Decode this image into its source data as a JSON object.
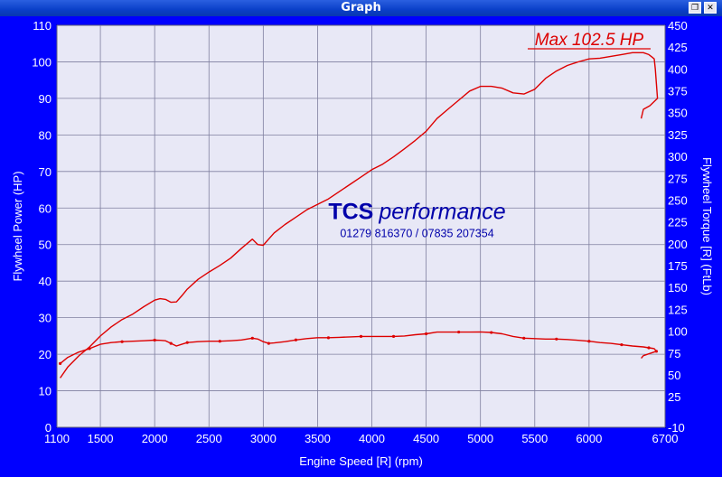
{
  "window": {
    "title": "Graph"
  },
  "titlebar_buttons": [
    {
      "icon": "restore-icon",
      "glyph": "❐"
    },
    {
      "icon": "close-icon",
      "glyph": "✕"
    }
  ],
  "colors": {
    "frame": "#0000ff",
    "plot_bg": "#e8e8f6",
    "grid": "#7f7f9f",
    "curve": "#dd0000",
    "brand": "#0000aa"
  },
  "watermark": {
    "brand_bold": "TCS",
    "brand_italic": "performance",
    "phone": "01279 816370 / 07835 207354"
  },
  "annotation": {
    "max_label": "Max 102.5 HP"
  },
  "chart_data": {
    "type": "line",
    "xlabel": "Engine Speed [R] (rpm)",
    "ylabel": "Flywheel Power (HP)",
    "ylabel_right": "Flywheel Torque [R] (FtLb)",
    "xlim": [
      1100,
      6700
    ],
    "ylim": [
      0,
      110
    ],
    "ylim_right": [
      -10,
      450
    ],
    "xticks": [
      1100,
      1500,
      2000,
      2500,
      3000,
      3500,
      4000,
      4500,
      5000,
      5500,
      6000,
      6700
    ],
    "yticks": [
      0,
      10,
      20,
      30,
      40,
      50,
      60,
      70,
      80,
      90,
      100,
      110
    ],
    "yticks_right": [
      -10,
      25,
      50,
      75,
      100,
      125,
      150,
      175,
      200,
      225,
      250,
      275,
      300,
      325,
      350,
      375,
      400,
      425,
      450
    ],
    "grid": true,
    "series": [
      {
        "axis": "left",
        "x": [
          1130,
          1200,
          1300,
          1400,
          1500,
          1600,
          1700,
          1800,
          1900,
          2000,
          2050,
          2100,
          2150,
          2200,
          2250,
          2300,
          2400,
          2500,
          2600,
          2700,
          2800,
          2900,
          2950,
          3000,
          3050,
          3100,
          3200,
          3300,
          3400,
          3500,
          3600,
          3700,
          3800,
          3900,
          4000,
          4100,
          4200,
          4300,
          4400,
          4500,
          4600,
          4700,
          4800,
          4900,
          5000,
          5100,
          5200,
          5300,
          5400,
          5500,
          5600,
          5700,
          5800,
          5900,
          6000,
          6100,
          6200,
          6300,
          6400,
          6500,
          6550,
          6580,
          6600,
          6610,
          6620,
          6630,
          6560,
          6500,
          6480
        ],
        "values": [
          13.5,
          16.5,
          19.5,
          22,
          25,
          27.5,
          29.5,
          31,
          33,
          34.8,
          35.2,
          35,
          34.2,
          34.3,
          36,
          37.8,
          40.5,
          42.5,
          44.3,
          46.3,
          49,
          51.5,
          50,
          49.8,
          51.5,
          53.2,
          55.5,
          57.5,
          59.5,
          61,
          62.5,
          64.5,
          66.5,
          68.5,
          70.5,
          72,
          74,
          76.2,
          78.5,
          81,
          84.5,
          87,
          89.5,
          92,
          93.3,
          93.3,
          92.8,
          91.5,
          91.2,
          92.5,
          95.5,
          97.5,
          99,
          100,
          100.8,
          101,
          101.5,
          102,
          102.5,
          102.5,
          102,
          101.3,
          100.8,
          98,
          94,
          90,
          88,
          87,
          84.5
        ]
      },
      {
        "axis": "right",
        "x": [
          1130,
          1200,
          1300,
          1400,
          1500,
          1600,
          1700,
          1800,
          1900,
          2000,
          2050,
          2100,
          2150,
          2200,
          2250,
          2300,
          2400,
          2500,
          2600,
          2700,
          2800,
          2900,
          2950,
          3000,
          3050,
          3100,
          3200,
          3300,
          3400,
          3500,
          3600,
          3700,
          3800,
          3900,
          4000,
          4100,
          4200,
          4300,
          4400,
          4500,
          4600,
          4700,
          4800,
          4900,
          5000,
          5100,
          5200,
          5300,
          5400,
          5500,
          5600,
          5700,
          5800,
          5900,
          6000,
          6100,
          6200,
          6300,
          6400,
          6500,
          6550,
          6580,
          6600,
          6620,
          6500,
          6480
        ],
        "values": [
          63,
          70,
          76,
          80,
          85,
          87,
          88,
          88.5,
          89,
          89.8,
          89.5,
          89,
          86,
          83,
          85,
          87,
          88,
          88.5,
          88.5,
          89,
          90,
          92,
          91,
          88,
          86,
          86.5,
          88,
          90,
          91.5,
          92.5,
          92.5,
          93,
          93.5,
          94,
          94,
          94,
          94,
          94.5,
          96,
          97,
          99,
          99,
          99,
          99,
          99.2,
          98.5,
          97,
          94,
          92,
          91.5,
          91,
          91,
          90.5,
          89.5,
          88.5,
          87,
          86,
          84.5,
          83,
          82,
          81,
          80.5,
          80,
          77,
          72,
          69
        ]
      }
    ]
  }
}
